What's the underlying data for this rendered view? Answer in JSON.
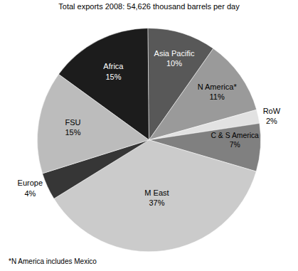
{
  "chart_data": {
    "type": "pie",
    "title": "Total exports 2008: 54,626 thousand barrels per day",
    "categories": [
      "Africa",
      "Asia Pacific",
      "N America*",
      "RoW",
      "C & S America",
      "M East",
      "Europe",
      "FSU"
    ],
    "values": [
      15,
      10,
      11,
      2,
      7,
      37,
      4,
      15
    ],
    "value_labels": [
      "15%",
      "10%",
      "11%",
      "2%",
      "7%",
      "37%",
      "4%",
      "15%"
    ],
    "colors": [
      "#1c1c1c",
      "#585858",
      "#9a9a9a",
      "#e2e2e2",
      "#808080",
      "#cbcbcb",
      "#363636",
      "#bcbcbc"
    ],
    "data_labels": true,
    "annotations": [
      "*N America includes Mexico"
    ]
  }
}
